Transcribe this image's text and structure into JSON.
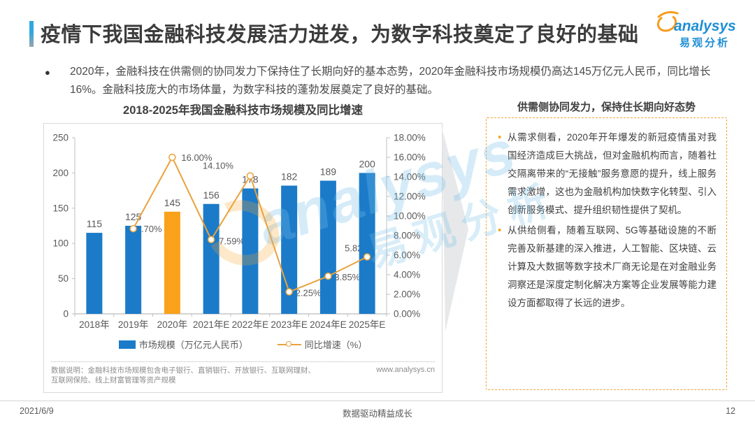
{
  "header": {
    "title": "疫情下我国金融科技发展活力迸发，为数字科技奠定了良好的基础"
  },
  "logo": {
    "name": "analysys",
    "cn": "易观分析"
  },
  "summary": {
    "bullet": "2020年，金融科技在供需侧的协同发力下保持住了长期向好的基本态势，2020年金融科技市场规模仍高达145万亿元人民币，同比增长16%。金融科技庞大的市场体量，为数字科技的蓬勃发展奠定了良好的基础。"
  },
  "chart": {
    "title": "2018-2025年我国金融科技市场规模及同比增速",
    "footnote": "数据说明：金融科技市场规模包含电子银行、直销银行、开放银行、互联网理财、互联网保险、线上财富管理等资产规模",
    "source_url": "www.analysys.cn"
  },
  "chart_data": {
    "type": "bar+line",
    "title": "2018-2025年我国金融科技市场规模及同比增速",
    "categories": [
      "2018年",
      "2019年",
      "2020年",
      "2021年E",
      "2022年E",
      "2023年E",
      "2024年E",
      "2025年E"
    ],
    "series": [
      {
        "name": "市场规模（万亿元人民币）",
        "type": "bar",
        "values": [
          115,
          125,
          145,
          156,
          178,
          182,
          189,
          200
        ]
      },
      {
        "name": "同比增速（%）",
        "type": "line",
        "values": [
          null,
          8.7,
          16.0,
          7.59,
          14.1,
          2.25,
          3.85,
          5.82
        ],
        "labels": [
          null,
          "8.70%",
          "16.00%",
          "7.59%",
          "14.10%",
          "2.25%",
          "3.85%",
          "5.82%"
        ]
      }
    ],
    "left_axis": {
      "min": 0,
      "max": 250,
      "step": 50,
      "ticks": [
        "0",
        "50",
        "100",
        "150",
        "200",
        "250"
      ]
    },
    "right_axis": {
      "min": 0,
      "max": 18,
      "step": 2,
      "ticks": [
        "0.00%",
        "2.00%",
        "4.00%",
        "6.00%",
        "8.00%",
        "10.00%",
        "12.00%",
        "14.00%",
        "16.00%",
        "18.00%"
      ]
    },
    "highlight_category": "2020年",
    "legend_position": "bottom",
    "grid": false,
    "colors": {
      "bar": "#1b7bc9",
      "bar_highlight": "#faa21b",
      "line": "#e9a23c",
      "axis": "#bfbfbf",
      "label": "#595959"
    }
  },
  "panel": {
    "title": "供需侧协同发力，保持住长期向好态势",
    "bullets": [
      "从需求侧看，2020年开年爆发的新冠疫情虽对我国经济造成巨大挑战，但对金融机构而言，随着社交隔离带来的“无接触”服务意愿的提升，线上服务需求激增，这也为金融机构加快数字化转型、引入创新服务模式、提升组织韧性提供了契机。",
      "从供给侧看，随着互联网、5G等基础设施的不断完善及新基建的深入推进，人工智能、区块链、云计算及大数据等数字技术厂商无论是在对金融业务洞察还是深度定制化解决方案等企业发展等能力建设方面都取得了长远的进步。"
    ]
  },
  "watermark": {
    "text": "analysys",
    "cn": "易观分析"
  },
  "footer": {
    "date": "2021/6/9",
    "slogan": "数据驱动精益成长",
    "page": "12"
  }
}
